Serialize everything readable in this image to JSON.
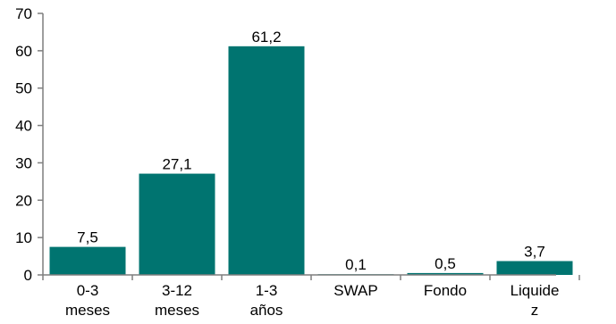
{
  "chart_data": {
    "type": "bar",
    "categories": [
      [
        "0-3",
        "meses"
      ],
      [
        "3-12",
        "meses"
      ],
      [
        "1-3",
        "años"
      ],
      [
        "SWAP"
      ],
      [
        "Fondo"
      ],
      [
        "Liquide",
        "z"
      ]
    ],
    "values": [
      7.5,
      27.1,
      61.2,
      0.1,
      0.5,
      3.7
    ],
    "data_labels": [
      "7,5",
      "27,1",
      "61,2",
      "0,1",
      "0,5",
      "3,7"
    ],
    "ylim": [
      0,
      70
    ],
    "yticks": [
      0,
      10,
      20,
      30,
      40,
      50,
      60,
      70
    ],
    "grid": false,
    "bar_color": "#007470",
    "axis_color": "#7f7f7f"
  }
}
